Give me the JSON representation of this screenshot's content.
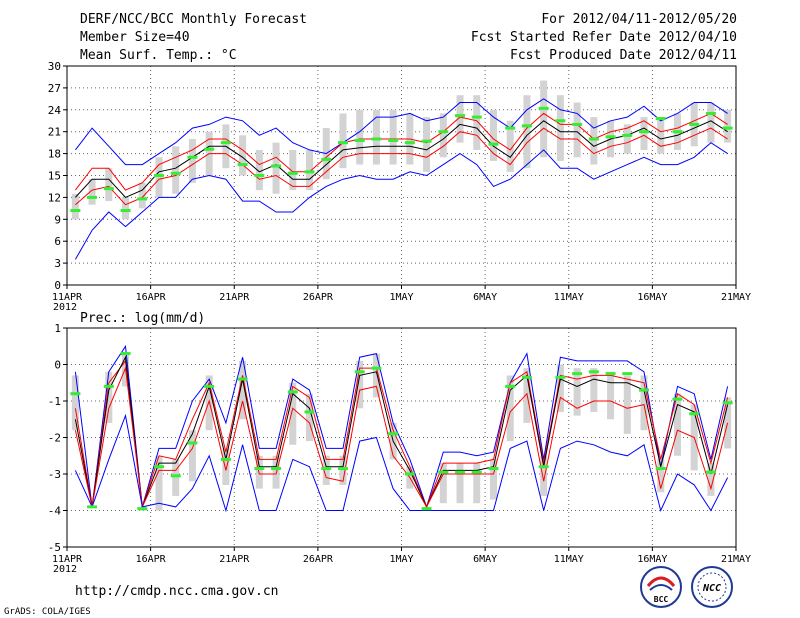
{
  "header": {
    "title": "DERF/NCC/BCC Monthly Forecast",
    "member": "Member Size=40",
    "variable": "Mean Surf. Temp.: °C",
    "period": "For 2012/04/11-2012/05/20",
    "started": "Fcst Started Refer Date 2012/04/10",
    "produced": "Fcst Produced Date 2012/04/11"
  },
  "footer": {
    "url": "http://cmdp.ncc.cma.gov.cn",
    "grads": "GrADS: COLA/IGES",
    "logo_bcc": "BCC",
    "logo_ncc": "NCC"
  },
  "colors": {
    "blue": "#0000ff",
    "red": "#ff0000",
    "black": "#000000",
    "green": "#33ee33",
    "gray": "#d3d3d3",
    "grid": "#666666"
  },
  "chart_data": [
    {
      "type": "line",
      "title": "Mean Surf. Temp.: °C",
      "ylabel": "Mean Surf. Temp.: °C",
      "ylim": [
        0,
        30
      ],
      "yticks": [
        0,
        3,
        6,
        9,
        12,
        15,
        18,
        21,
        24,
        27,
        30
      ],
      "xlim": [
        0,
        40
      ],
      "xticks": [
        0,
        5,
        10,
        15,
        20,
        25,
        30,
        35,
        40
      ],
      "xtick_labels": [
        "11APR",
        "16APR",
        "21APR",
        "26APR",
        "1MAY",
        "6MAY",
        "11MAY",
        "16MAY",
        "21MAY"
      ],
      "year_label": "2012",
      "box_low": [
        9.0,
        11.0,
        11.5,
        9.0,
        10.5,
        12.0,
        12.5,
        14.0,
        15.0,
        16.0,
        15.0,
        13.0,
        12.5,
        13.0,
        13.0,
        14.5,
        16.0,
        16.5,
        16.5,
        16.5,
        16.5,
        15.5,
        17.5,
        19.5,
        18.5,
        17.0,
        15.5,
        16.0,
        17.5,
        17.0,
        17.5,
        16.5,
        17.5,
        18.0,
        18.5,
        18.0,
        18.5,
        19.0,
        19.5,
        19.5
      ],
      "box_high": [
        12.5,
        14.5,
        16.0,
        12.0,
        14.0,
        17.5,
        19.0,
        20.0,
        21.0,
        22.0,
        20.5,
        18.5,
        19.5,
        18.5,
        18.5,
        21.5,
        23.5,
        24.0,
        24.0,
        24.0,
        23.5,
        23.0,
        23.5,
        26.0,
        26.0,
        24.0,
        22.5,
        26.0,
        28.0,
        26.0,
        25.0,
        23.0,
        22.5,
        22.0,
        23.0,
        23.0,
        23.5,
        25.0,
        25.0,
        24.0
      ],
      "series": [
        {
          "name": "max",
          "color": "blue",
          "values": [
            18.5,
            21.5,
            19.0,
            16.5,
            16.5,
            18.0,
            19.5,
            21.5,
            22.0,
            23.0,
            22.5,
            20.5,
            21.5,
            19.5,
            18.5,
            18.0,
            19.5,
            21.0,
            23.0,
            23.0,
            23.5,
            22.5,
            23.0,
            25.0,
            25.0,
            23.0,
            21.5,
            24.0,
            25.5,
            24.0,
            23.5,
            21.5,
            22.5,
            23.0,
            24.5,
            22.5,
            23.5,
            25.0,
            25.0,
            23.5
          ]
        },
        {
          "name": "upper",
          "color": "red",
          "values": [
            13.0,
            16.0,
            16.0,
            13.0,
            14.0,
            16.5,
            17.5,
            18.5,
            20.0,
            20.0,
            18.5,
            16.5,
            17.5,
            15.5,
            15.5,
            17.5,
            19.5,
            20.0,
            20.0,
            20.0,
            20.0,
            19.5,
            21.0,
            23.0,
            22.5,
            20.0,
            18.5,
            21.5,
            23.5,
            22.0,
            22.0,
            20.0,
            21.0,
            21.5,
            22.5,
            21.0,
            21.5,
            22.5,
            23.5,
            22.0
          ]
        },
        {
          "name": "mean",
          "color": "black",
          "values": [
            12.0,
            14.5,
            14.5,
            12.0,
            13.0,
            15.5,
            16.0,
            17.5,
            19.0,
            19.0,
            17.5,
            15.5,
            16.5,
            14.5,
            14.5,
            16.5,
            18.5,
            18.8,
            19.0,
            19.0,
            19.0,
            18.5,
            20.0,
            22.0,
            21.5,
            19.0,
            17.5,
            20.5,
            22.5,
            21.0,
            21.0,
            19.0,
            20.0,
            20.5,
            21.5,
            20.0,
            20.5,
            21.5,
            22.5,
            21.0
          ]
        },
        {
          "name": "lower",
          "color": "red",
          "values": [
            11.0,
            13.0,
            13.5,
            11.0,
            12.0,
            14.5,
            15.0,
            16.5,
            18.0,
            18.0,
            16.5,
            14.5,
            15.0,
            13.5,
            13.5,
            15.5,
            17.5,
            18.0,
            18.0,
            18.0,
            18.0,
            17.5,
            19.0,
            21.0,
            20.5,
            18.0,
            16.5,
            19.5,
            21.5,
            20.0,
            20.0,
            18.0,
            19.0,
            19.5,
            20.5,
            19.0,
            19.5,
            20.5,
            21.5,
            20.0
          ]
        },
        {
          "name": "min",
          "color": "blue",
          "values": [
            3.5,
            7.5,
            10.0,
            8.0,
            10.0,
            12.0,
            12.0,
            14.5,
            15.0,
            14.5,
            11.5,
            11.5,
            10.0,
            10.0,
            12.0,
            13.5,
            14.5,
            15.0,
            14.5,
            14.5,
            15.5,
            15.0,
            16.5,
            18.0,
            16.5,
            13.5,
            14.5,
            16.5,
            18.5,
            16.0,
            16.0,
            14.5,
            15.5,
            16.5,
            17.5,
            16.5,
            16.5,
            17.5,
            19.5,
            18.0
          ]
        },
        {
          "name": "green markers",
          "color": "green",
          "values": [
            10.2,
            12.0,
            13.2,
            10.2,
            11.8,
            15.0,
            15.3,
            17.5,
            18.6,
            19.5,
            16.5,
            15.0,
            16.3,
            15.3,
            15.5,
            17.2,
            19.5,
            19.8,
            20.0,
            19.8,
            19.5,
            19.7,
            21.0,
            23.2,
            23.0,
            19.3,
            21.5,
            21.8,
            24.2,
            22.5,
            22.0,
            20.0,
            20.3,
            20.5,
            21.0,
            22.8,
            21.0,
            22.0,
            23.5,
            21.5
          ]
        }
      ]
    },
    {
      "type": "line",
      "title": "Prec.: log(mm/d)",
      "ylabel": "Prec.: log(mm/d)",
      "ylim": [
        -5,
        1
      ],
      "yticks": [
        -5,
        -4,
        -3,
        -2,
        -1,
        0,
        1
      ],
      "xlim": [
        0,
        40
      ],
      "xticks": [
        0,
        5,
        10,
        15,
        20,
        25,
        30,
        35,
        40
      ],
      "xtick_labels": [
        "11APR",
        "16APR",
        "21APR",
        "26APR",
        "1MAY",
        "6MAY",
        "11MAY",
        "16MAY",
        "21MAY"
      ],
      "year_label": "2012",
      "box_low": [
        -1.8,
        -3.8,
        -1.6,
        -0.6,
        -4.0,
        -4.0,
        -3.6,
        -3.2,
        -1.8,
        -3.3,
        -1.5,
        -3.4,
        -3.4,
        -2.2,
        -2.1,
        -3.3,
        -3.3,
        -1.2,
        -0.9,
        -2.6,
        -3.4,
        -4.0,
        -3.8,
        -3.8,
        -3.8,
        -3.7,
        -2.1,
        -1.6,
        -3.6,
        -1.3,
        -1.4,
        -1.3,
        -1.5,
        -1.9,
        -1.8,
        -3.5,
        -2.5,
        -2.9,
        -3.6,
        -2.3
      ],
      "box_high": [
        -0.3,
        -3.9,
        -0.2,
        0.3,
        -3.9,
        -2.5,
        -2.6,
        -1.8,
        -0.3,
        -2.3,
        0.1,
        -2.5,
        -2.5,
        -0.5,
        -0.8,
        -2.5,
        -2.5,
        0.1,
        0.3,
        -1.6,
        -2.8,
        -3.9,
        -2.7,
        -2.7,
        -2.7,
        -2.6,
        -0.3,
        -0.1,
        -2.5,
        0.0,
        -0.1,
        -0.1,
        -0.2,
        -0.3,
        -0.3,
        -2.6,
        -0.8,
        -1.1,
        -2.7,
        -0.9
      ],
      "series": [
        {
          "name": "max",
          "color": "blue",
          "values": [
            -0.2,
            -3.9,
            -0.2,
            0.5,
            -3.9,
            -2.3,
            -2.3,
            -1.0,
            -0.4,
            -1.6,
            0.2,
            -2.3,
            -2.3,
            -0.4,
            -0.7,
            -2.3,
            -2.3,
            0.2,
            0.3,
            -1.6,
            -2.6,
            -3.9,
            -2.4,
            -2.4,
            -2.5,
            -2.4,
            -0.5,
            0.3,
            -2.6,
            0.2,
            0.1,
            0.1,
            0.1,
            0.1,
            -0.2,
            -2.8,
            -0.6,
            -0.8,
            -2.6,
            -0.6
          ]
        },
        {
          "name": "upper",
          "color": "red",
          "values": [
            -1.2,
            -3.9,
            -0.5,
            0.1,
            -3.9,
            -2.5,
            -2.6,
            -1.5,
            -0.5,
            -2.4,
            -0.3,
            -2.6,
            -2.6,
            -0.6,
            -0.9,
            -2.6,
            -2.6,
            -0.1,
            -0.1,
            -1.8,
            -2.8,
            -3.9,
            -2.7,
            -2.7,
            -2.7,
            -2.6,
            -0.5,
            -0.2,
            -2.7,
            -0.3,
            -0.4,
            -0.3,
            -0.3,
            -0.4,
            -0.5,
            -2.6,
            -0.8,
            -1.1,
            -2.7,
            -0.9
          ]
        },
        {
          "name": "mean",
          "color": "black",
          "values": [
            -1.5,
            -3.9,
            -0.7,
            0.2,
            -3.9,
            -2.7,
            -2.7,
            -1.9,
            -0.6,
            -2.6,
            -0.4,
            -2.8,
            -2.8,
            -0.8,
            -1.2,
            -2.8,
            -2.8,
            -0.3,
            -0.2,
            -2.1,
            -2.9,
            -3.9,
            -2.9,
            -2.9,
            -2.9,
            -2.8,
            -0.7,
            -0.3,
            -2.8,
            -0.4,
            -0.6,
            -0.4,
            -0.5,
            -0.5,
            -0.7,
            -2.8,
            -1.1,
            -1.3,
            -3.0,
            -1.1
          ]
        },
        {
          "name": "lower",
          "color": "red",
          "values": [
            -1.8,
            -3.9,
            -1.2,
            -0.1,
            -3.9,
            -2.9,
            -2.9,
            -2.3,
            -1.0,
            -2.9,
            -1.0,
            -3.0,
            -3.0,
            -1.2,
            -1.6,
            -3.1,
            -3.2,
            -0.7,
            -0.6,
            -2.5,
            -3.1,
            -3.9,
            -3.0,
            -3.0,
            -3.0,
            -3.0,
            -1.3,
            -0.8,
            -3.2,
            -0.9,
            -1.2,
            -1.0,
            -1.0,
            -1.2,
            -1.1,
            -3.4,
            -1.8,
            -2.0,
            -3.4,
            -1.6
          ]
        },
        {
          "name": "min",
          "color": "blue",
          "values": [
            -2.9,
            -3.9,
            -2.6,
            -1.4,
            -3.9,
            -3.8,
            -3.9,
            -3.4,
            -2.5,
            -4.0,
            -2.2,
            -4.0,
            -4.0,
            -2.6,
            -2.8,
            -4.0,
            -4.0,
            -2.1,
            -2.0,
            -3.4,
            -4.0,
            -4.0,
            -4.0,
            -4.0,
            -4.0,
            -4.0,
            -2.3,
            -2.1,
            -4.0,
            -2.3,
            -2.1,
            -2.2,
            -2.4,
            -2.5,
            -2.2,
            -4.0,
            -3.0,
            -3.3,
            -4.0,
            -3.1
          ]
        },
        {
          "name": "green markers",
          "color": "green",
          "values": [
            -0.8,
            -3.9,
            -0.6,
            0.3,
            -3.95,
            -2.8,
            -3.05,
            -2.15,
            -0.6,
            -2.6,
            -0.4,
            -2.85,
            -2.85,
            -0.75,
            -1.3,
            -2.85,
            -2.85,
            -0.2,
            -0.1,
            -1.9,
            -3.0,
            -3.95,
            -2.95,
            -2.95,
            -2.95,
            -2.85,
            -0.6,
            -0.35,
            -2.8,
            -0.35,
            -0.25,
            -0.2,
            -0.25,
            -0.25,
            -0.7,
            -2.85,
            -0.95,
            -1.35,
            -2.95,
            -1.05
          ]
        }
      ]
    }
  ]
}
